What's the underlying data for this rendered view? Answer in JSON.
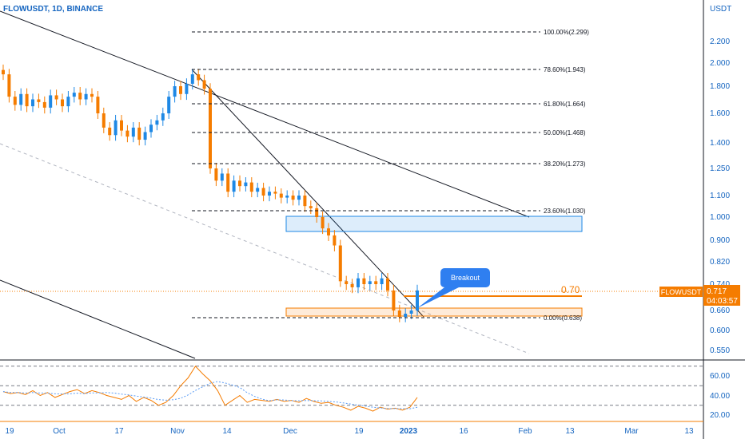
{
  "header": {
    "symbol_line": "FLOWUSDT, 1D, BINANCE"
  },
  "price_axis": {
    "currency": "USDT",
    "ticks": [
      "2.200",
      "2.000",
      "1.800",
      "1.600",
      "1.400",
      "1.250",
      "1.100",
      "1.000",
      "0.900",
      "0.820",
      "0.740",
      "0.660",
      "0.600",
      "0.550"
    ]
  },
  "badge": {
    "symbol": "FLOWUSDT",
    "price": "0.717",
    "countdown": "04:03:57",
    "color": "#f57c00"
  },
  "time_axis": {
    "ticks": [
      "19",
      "Oct",
      "17",
      "Nov",
      "14",
      "Dec",
      "19",
      "2023",
      "16",
      "Feb",
      "13",
      "Mar",
      "13"
    ]
  },
  "indicator_axis": {
    "ticks": [
      "60.00",
      "40.00",
      "20.00"
    ]
  },
  "annotations": {
    "breakout": "Breakout",
    "level_070": "0.70"
  },
  "colors": {
    "up": "#1e88e5",
    "down": "#f57c00",
    "axis": "#1565c0"
  },
  "chart_data": {
    "type": "candlestick",
    "series_up_color": "#1e88e5",
    "series_down_color": "#f57c00",
    "y_scale": "log",
    "candles_close": [
      1.9,
      1.72,
      1.66,
      1.74,
      1.65,
      1.7,
      1.68,
      1.64,
      1.73,
      1.7,
      1.65,
      1.72,
      1.75,
      1.7,
      1.74,
      1.72,
      1.6,
      1.5,
      1.45,
      1.55,
      1.48,
      1.44,
      1.5,
      1.42,
      1.47,
      1.52,
      1.55,
      1.6,
      1.72,
      1.8,
      1.74,
      1.82,
      1.9,
      1.85,
      1.78,
      1.25,
      1.18,
      1.22,
      1.12,
      1.18,
      1.15,
      1.17,
      1.12,
      1.14,
      1.1,
      1.12,
      1.11,
      1.09,
      1.1,
      1.08,
      1.1,
      1.05,
      1.04,
      1.0,
      0.95,
      0.92,
      0.88,
      0.75,
      0.74,
      0.73,
      0.76,
      0.74,
      0.75,
      0.74,
      0.76,
      0.72,
      0.66,
      0.64,
      0.65,
      0.66,
      0.72
    ],
    "fibonacci_levels": [
      {
        "label": "100.00%(2.299)"
      },
      {
        "label": "78.60%(1.943)"
      },
      {
        "label": "61.80%(1.664)"
      },
      {
        "label": "50.00%(1.468)"
      },
      {
        "label": "38.20%(1.273)"
      },
      {
        "label": "23.60%(1.030)"
      },
      {
        "label": "0.00%(0.638)"
      }
    ],
    "zones": [
      {
        "name": "resistance",
        "low": 0.95,
        "high": 1.0,
        "color": "#1e88e5"
      },
      {
        "name": "support",
        "low": 0.64,
        "high": 0.66,
        "color": "#f57c00"
      }
    ],
    "horizontal_level": 0.7,
    "rsi": [
      44,
      42,
      43,
      41,
      45,
      40,
      43,
      38,
      41,
      44,
      46,
      42,
      45,
      43,
      40,
      38,
      36,
      40,
      34,
      38,
      35,
      30,
      33,
      40,
      50,
      58,
      70,
      62,
      55,
      45,
      30,
      35,
      40,
      33,
      36,
      35,
      34,
      36,
      34,
      35,
      33,
      37,
      34,
      32,
      33,
      30,
      28,
      25,
      29,
      27,
      24,
      28,
      26,
      27,
      25,
      28,
      38
    ],
    "rsi_levels": [
      70,
      50,
      30
    ]
  }
}
